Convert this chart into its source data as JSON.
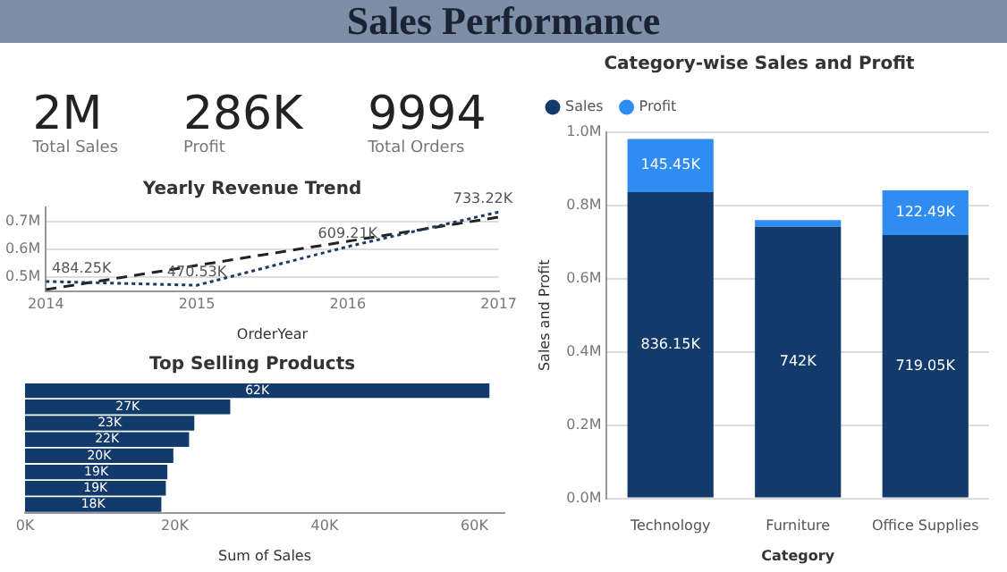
{
  "chart_data": [
    {
      "type": "other",
      "title": "Sales Performance",
      "annotations": [
        "2M",
        "Total Sales",
        "286K",
        "Profit",
        "9994",
        "Total Orders"
      ]
    },
    {
      "type": "line",
      "title": "Yearly Revenue Trend",
      "xlabel": "OrderYear",
      "xlim": [
        2014,
        2017
      ],
      "xticks": [
        2014,
        2015,
        2016,
        2017
      ],
      "ylim": [
        450000,
        750000
      ],
      "yticks": [
        {
          "value": 500000,
          "label": "0.5M"
        },
        {
          "value": 600000,
          "label": "0.6M"
        },
        {
          "value": 700000,
          "label": "0.7M"
        }
      ],
      "grid": "y",
      "series": [
        {
          "color": "#1f3864",
          "line_style": "dotted",
          "x": [
            2014,
            2015,
            2016,
            2017
          ],
          "values": [
            484250,
            470530,
            609210,
            733220
          ],
          "value_labels": [
            "484.25K",
            "470.53K",
            "609.21K",
            "733.22K"
          ]
        },
        {
          "color": "#222222",
          "line_style": "dashed",
          "x": [
            2014,
            2017
          ],
          "values": [
            455000,
            715000
          ]
        }
      ]
    },
    {
      "type": "bar",
      "orientation": "horizontal",
      "title": "Top Selling Products",
      "xlabel": "Sum of Sales",
      "categories": [
        null,
        null,
        null,
        null,
        null,
        null,
        null,
        null
      ],
      "values": [
        62000,
        27400,
        22600,
        21900,
        19800,
        19000,
        18800,
        18200
      ],
      "value_labels": [
        "62K",
        "27K",
        "23K",
        "22K",
        "20K",
        "19K",
        "19K",
        "18K"
      ],
      "color": "#123a6b",
      "xlim": [
        0,
        64000
      ],
      "xticks": [
        {
          "value": 0,
          "label": "0K"
        },
        {
          "value": 20000,
          "label": "20K"
        },
        {
          "value": 40000,
          "label": "40K"
        },
        {
          "value": 60000,
          "label": "60K"
        }
      ]
    },
    {
      "type": "bar",
      "stacked": true,
      "title": "Category-wise Sales and Profit",
      "xlabel": "Category",
      "ylabel": "Sales and Profit",
      "categories": [
        "Technology",
        "Furniture",
        "Office Supplies"
      ],
      "ylim": [
        0,
        1000000
      ],
      "yticks": [
        {
          "value": 0,
          "label": "0.0M"
        },
        {
          "value": 200000,
          "label": "0.2M"
        },
        {
          "value": 400000,
          "label": "0.4M"
        },
        {
          "value": 600000,
          "label": "0.6M"
        },
        {
          "value": 800000,
          "label": "0.8M"
        },
        {
          "value": 1000000,
          "label": "1.0M"
        }
      ],
      "grid": "y",
      "legend": "top left",
      "series": [
        {
          "name": "Sales",
          "color": "#123a6b",
          "values": [
            836150,
            742000,
            719050
          ],
          "value_labels": [
            "836.15K",
            "742K",
            "719.05K"
          ]
        },
        {
          "name": "Profit",
          "color": "#2f8cf0",
          "values": [
            145450,
            18000,
            122490
          ],
          "value_labels": [
            "145.45K",
            null,
            "122.49K"
          ]
        }
      ]
    }
  ]
}
